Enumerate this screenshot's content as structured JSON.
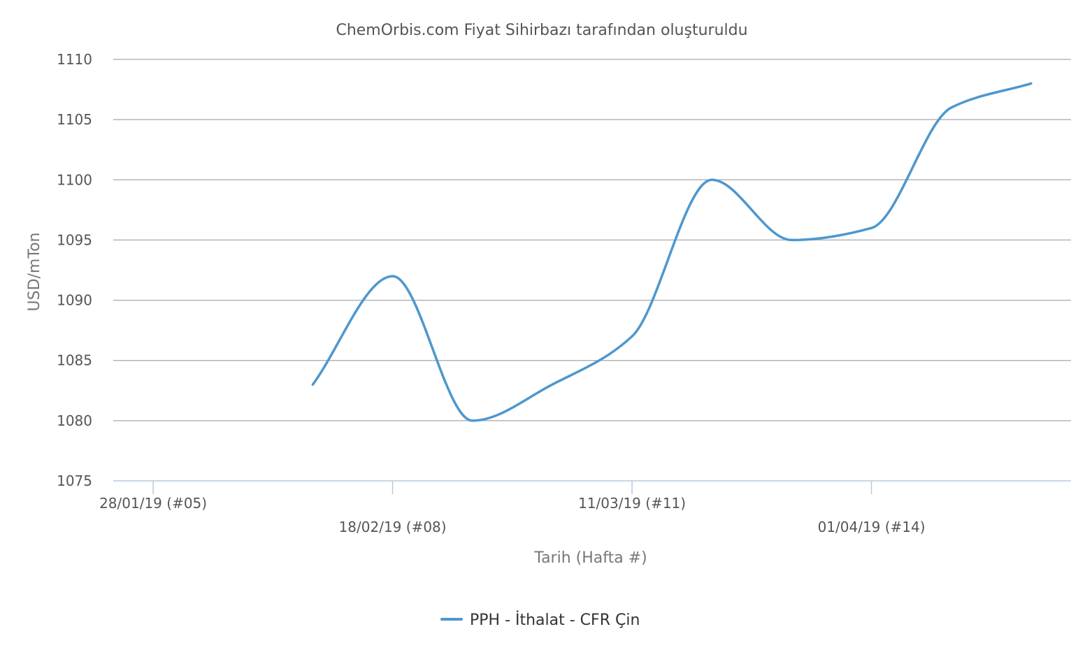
{
  "chart_data": {
    "type": "line",
    "title": "ChemOrbis.com Fiyat Sihirbazı tarafından oluşturuldu",
    "xlabel": "Tarih (Hafta #)",
    "ylabel": "USD/mTon",
    "ylim": [
      1075,
      1110
    ],
    "yticks": [
      "1075",
      "1080",
      "1085",
      "1090",
      "1095",
      "1100",
      "1105",
      "1110"
    ],
    "xticks": [
      {
        "label": "28/01/19 (#05)",
        "week": 5
      },
      {
        "label": "18/02/19 (#08)",
        "week": 8
      },
      {
        "label": "11/03/19 (#11)",
        "week": 11
      },
      {
        "label": "01/04/19 (#14)",
        "week": 14
      }
    ],
    "xlim": [
      4.5,
      16.5
    ],
    "grid": true,
    "legend": "bottom-center",
    "series": [
      {
        "name": "PPH - İthalat - CFR Çin",
        "color": "#4e97cd",
        "points": [
          {
            "week": 7,
            "value": 1083
          },
          {
            "week": 8,
            "value": 1092
          },
          {
            "week": 9,
            "value": 1080
          },
          {
            "week": 10,
            "value": 1083
          },
          {
            "week": 11,
            "value": 1087
          },
          {
            "week": 12,
            "value": 1100
          },
          {
            "week": 13,
            "value": 1095
          },
          {
            "week": 14,
            "value": 1096
          },
          {
            "week": 15,
            "value": 1106
          },
          {
            "week": 16,
            "value": 1108
          }
        ]
      }
    ]
  }
}
